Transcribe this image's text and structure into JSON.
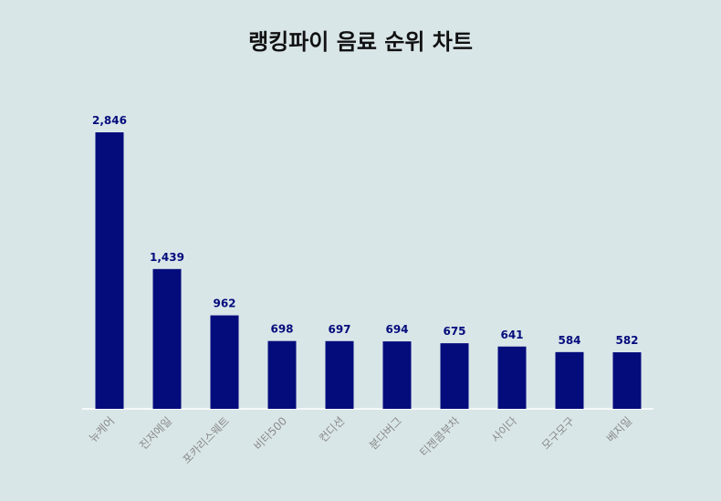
{
  "chart_data": {
    "type": "bar",
    "title": "랭킹파이 음료 순위 차트",
    "xlabel": "",
    "ylabel": "",
    "categories": [
      "뉴케어",
      "진저에일",
      "포카리스웨트",
      "비타500",
      "컨디션",
      "분다버그",
      "티젠콤부차",
      "사이다",
      "모구모구",
      "베지밀"
    ],
    "values": [
      2846,
      1439,
      962,
      698,
      697,
      694,
      675,
      641,
      584,
      582
    ],
    "data_labels": [
      "2,846",
      "1,439",
      "962",
      "698",
      "697",
      "694",
      "675",
      "641",
      "584",
      "582"
    ],
    "ylim": [
      0,
      2846
    ],
    "grid": false,
    "legend": "none",
    "bar_color": "#040c7c",
    "label_color": "#040c7c"
  }
}
